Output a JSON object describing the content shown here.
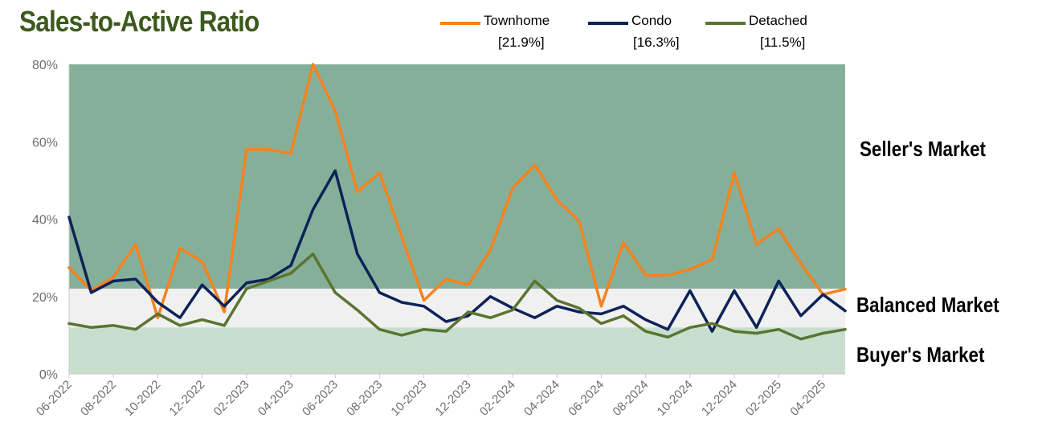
{
  "chart_data": {
    "type": "line",
    "title": "Sales-to-Active Ratio",
    "x": [
      "06-2022",
      "07-2022",
      "08-2022",
      "09-2022",
      "10-2022",
      "11-2022",
      "12-2022",
      "01-2023",
      "02-2023",
      "03-2023",
      "04-2023",
      "05-2023",
      "06-2023",
      "07-2023",
      "08-2023",
      "09-2023",
      "10-2023",
      "11-2023",
      "12-2023",
      "01-2024",
      "02-2024",
      "03-2024",
      "04-2024",
      "05-2024",
      "06-2024",
      "07-2024",
      "08-2024",
      "09-2024",
      "10-2024",
      "11-2024",
      "12-2024",
      "01-2025",
      "02-2025",
      "03-2025",
      "04-2025",
      "05-2025"
    ],
    "tick_labels": [
      "06-2022",
      "08-2022",
      "10-2022",
      "12-2022",
      "02-2023",
      "04-2023",
      "06-2023",
      "08-2023",
      "10-2023",
      "12-2023",
      "02-2024",
      "04-2024",
      "06-2024",
      "08-2024",
      "10-2024",
      "12-2024",
      "02-2025",
      "04-2025"
    ],
    "y_ticks": [
      "0%",
      "20%",
      "40%",
      "60%",
      "80%"
    ],
    "ylim": [
      0,
      80
    ],
    "series": [
      {
        "name": "Townhome",
        "value_label": "[21.9%]",
        "color": "#f5821f",
        "values": [
          27.5,
          21.5,
          25,
          33.5,
          14.5,
          32.5,
          29,
          16,
          58,
          58,
          57,
          80,
          68,
          47,
          52,
          35.5,
          19,
          24.5,
          23,
          32,
          48,
          54,
          45,
          39.5,
          17.5,
          34,
          25.5,
          25.5,
          27,
          29.5,
          52,
          33.5,
          37.5,
          28.5,
          20.5,
          21.9
        ]
      },
      {
        "name": "Condo",
        "value_label": "[16.3%]",
        "color": "#0d2258",
        "values": [
          40.5,
          21,
          24,
          24.5,
          18.5,
          14.5,
          23,
          17.5,
          23.5,
          24.5,
          28,
          42.5,
          52.5,
          31,
          21,
          18.5,
          17.5,
          13.5,
          15,
          20,
          17,
          14.5,
          17.5,
          16,
          15.5,
          17.5,
          14,
          11.5,
          21.5,
          11,
          21.5,
          12,
          24,
          15,
          20.5,
          16.3
        ]
      },
      {
        "name": "Detached",
        "value_label": "[11.5%]",
        "color": "#5b7431",
        "values": [
          13,
          12,
          12.5,
          11.5,
          15.5,
          12.5,
          14,
          12.5,
          22,
          24,
          26,
          31,
          21,
          16.5,
          11.5,
          10,
          11.5,
          11,
          16,
          14.5,
          16.5,
          24,
          19,
          17,
          13,
          15,
          11,
          9.5,
          12,
          13,
          11,
          10.5,
          11.5,
          9,
          10.5,
          11.5
        ]
      }
    ],
    "zones": [
      {
        "label": "Seller's Market",
        "from": 22,
        "to": 80,
        "color": "#84b09a"
      },
      {
        "label": "Balanced Market",
        "from": 12,
        "to": 22,
        "color": "#f0f0f0"
      },
      {
        "label": "Buyer's Market",
        "from": 0,
        "to": 12,
        "color": "#c8dfd0"
      }
    ],
    "grid": false,
    "legend_position": "top"
  }
}
